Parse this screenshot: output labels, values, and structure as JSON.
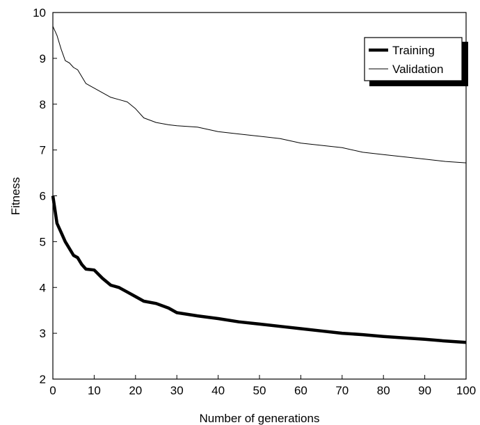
{
  "chart_data": {
    "type": "line",
    "title": "",
    "xlabel": "Number of generations",
    "ylabel": "Fitness",
    "xlim": [
      0,
      100
    ],
    "ylim": [
      2,
      10
    ],
    "xticks": [
      "0",
      "10",
      "20",
      "30",
      "40",
      "50",
      "60",
      "70",
      "80",
      "90",
      "100"
    ],
    "yticks": [
      "2",
      "3",
      "4",
      "5",
      "6",
      "7",
      "8",
      "9",
      "10"
    ],
    "grid": false,
    "legend": "top-right",
    "series": [
      {
        "name": "Training",
        "color": "#000000",
        "style": "thick",
        "x": [
          0,
          1,
          2,
          3,
          4,
          5,
          6,
          7,
          8,
          10,
          12,
          14,
          16,
          18,
          20,
          22,
          25,
          28,
          30,
          35,
          40,
          45,
          50,
          55,
          60,
          65,
          70,
          75,
          80,
          85,
          90,
          95,
          100
        ],
        "y": [
          6.0,
          5.4,
          5.2,
          5.0,
          4.85,
          4.7,
          4.65,
          4.5,
          4.4,
          4.38,
          4.2,
          4.05,
          4.0,
          3.9,
          3.8,
          3.7,
          3.65,
          3.55,
          3.45,
          3.38,
          3.32,
          3.25,
          3.2,
          3.15,
          3.1,
          3.05,
          3.0,
          2.97,
          2.93,
          2.9,
          2.87,
          2.83,
          2.8
        ]
      },
      {
        "name": "Validation",
        "color": "#000000",
        "style": "thin",
        "x": [
          0,
          1,
          2,
          3,
          4,
          5,
          6,
          7,
          8,
          10,
          12,
          14,
          16,
          18,
          20,
          22,
          25,
          28,
          30,
          35,
          40,
          45,
          50,
          55,
          60,
          65,
          70,
          75,
          80,
          85,
          90,
          95,
          100
        ],
        "y": [
          9.7,
          9.5,
          9.2,
          8.95,
          8.9,
          8.8,
          8.75,
          8.6,
          8.45,
          8.35,
          8.25,
          8.15,
          8.1,
          8.05,
          7.9,
          7.7,
          7.6,
          7.55,
          7.53,
          7.5,
          7.4,
          7.35,
          7.3,
          7.25,
          7.15,
          7.1,
          7.05,
          6.95,
          6.9,
          6.85,
          6.8,
          6.75,
          6.72
        ]
      }
    ]
  }
}
